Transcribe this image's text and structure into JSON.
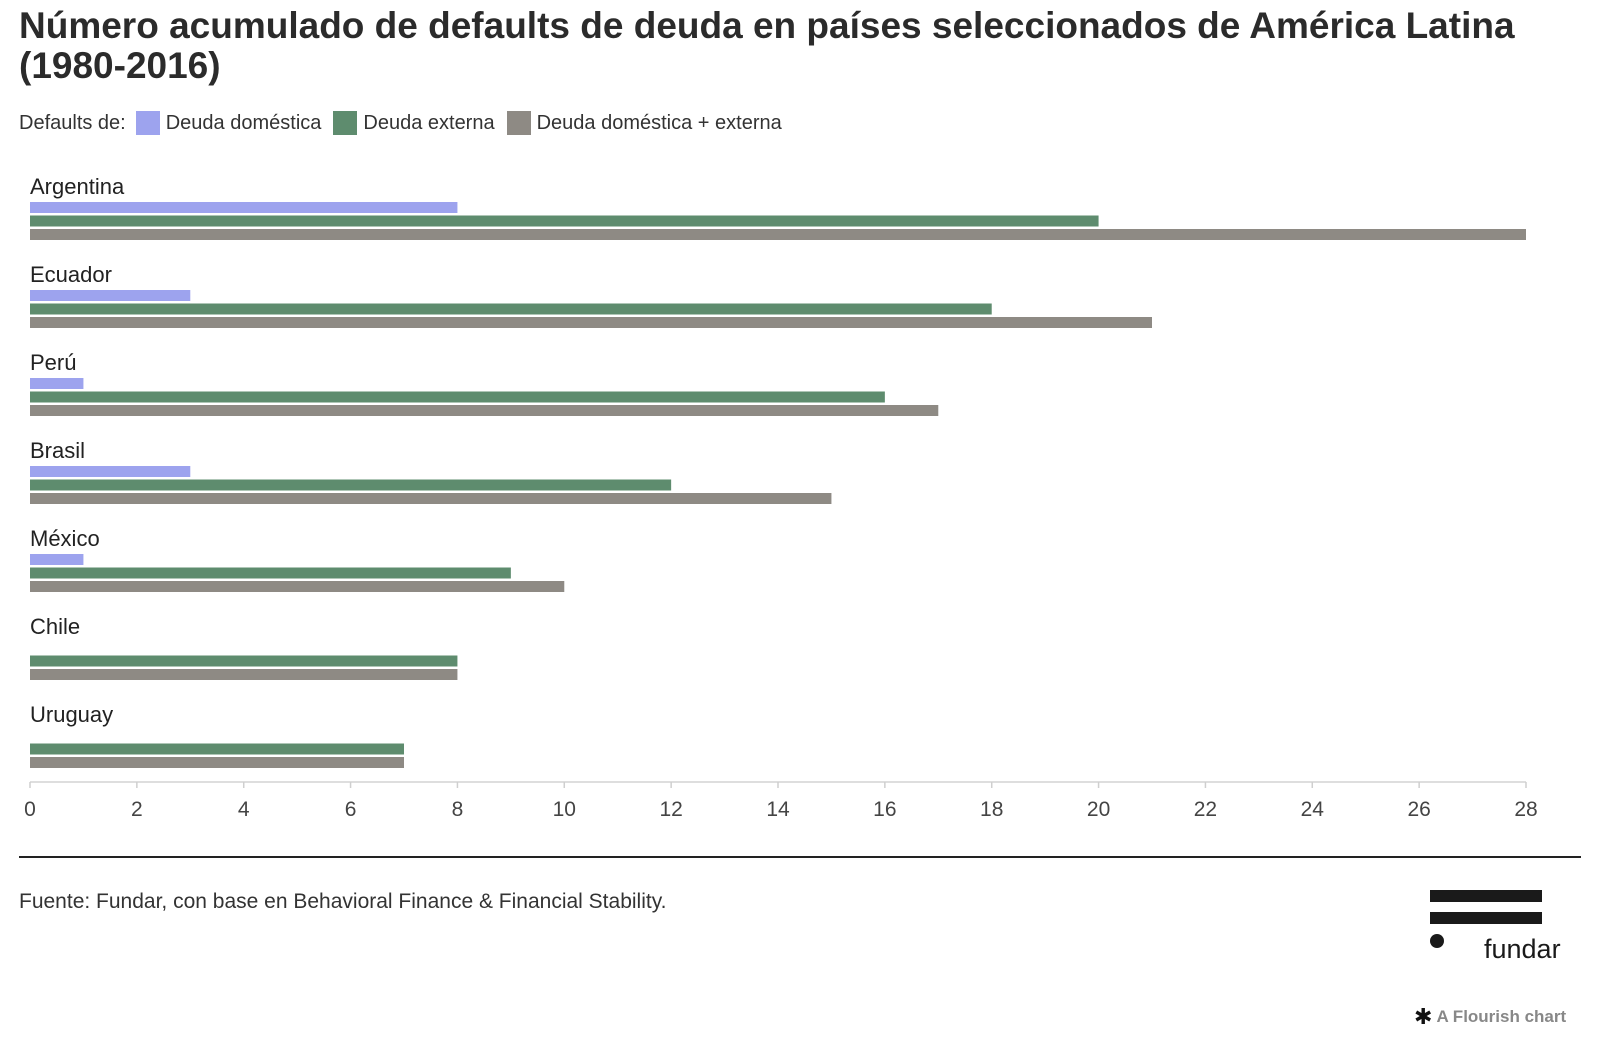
{
  "title": "Número acumulado de defaults de deuda en países seleccionados de América Latina (1980-2016)",
  "legend": {
    "lead": "Defaults de:",
    "items": [
      {
        "label": "Deuda doméstica",
        "color": "#9da3ee"
      },
      {
        "label": "Deuda externa",
        "color": "#5e8c6e"
      },
      {
        "label": "Deuda doméstica + externa",
        "color": "#8e8a84"
      }
    ]
  },
  "source": "Fuente: Fundar, con base en Behavioral Finance & Financial Stability.",
  "logo": {
    "wordmark": "fundar"
  },
  "credit": {
    "icon": "flourish-asterisk-icon",
    "text": "A Flourish chart"
  },
  "chart_data": {
    "type": "bar",
    "orientation": "horizontal",
    "title": "Número acumulado de defaults de deuda en países seleccionados de América Latina (1980-2016)",
    "categories": [
      "Argentina",
      "Ecuador",
      "Perú",
      "Brasil",
      "México",
      "Chile",
      "Uruguay"
    ],
    "series": [
      {
        "name": "Deuda doméstica",
        "color": "#9da3ee",
        "values": [
          8,
          3,
          1,
          3,
          1,
          0,
          0
        ]
      },
      {
        "name": "Deuda externa",
        "color": "#5e8c6e",
        "values": [
          20,
          18,
          16,
          12,
          9,
          8,
          7
        ]
      },
      {
        "name": "Deuda doméstica + externa",
        "color": "#8e8a84",
        "values": [
          28,
          21,
          17,
          15,
          10,
          8,
          7
        ]
      }
    ],
    "xlim": [
      0,
      28
    ],
    "xticks": [
      0,
      2,
      4,
      6,
      8,
      10,
      12,
      14,
      16,
      18,
      20,
      22,
      24,
      26,
      28
    ],
    "grid": false,
    "legend_position": "top-left"
  }
}
